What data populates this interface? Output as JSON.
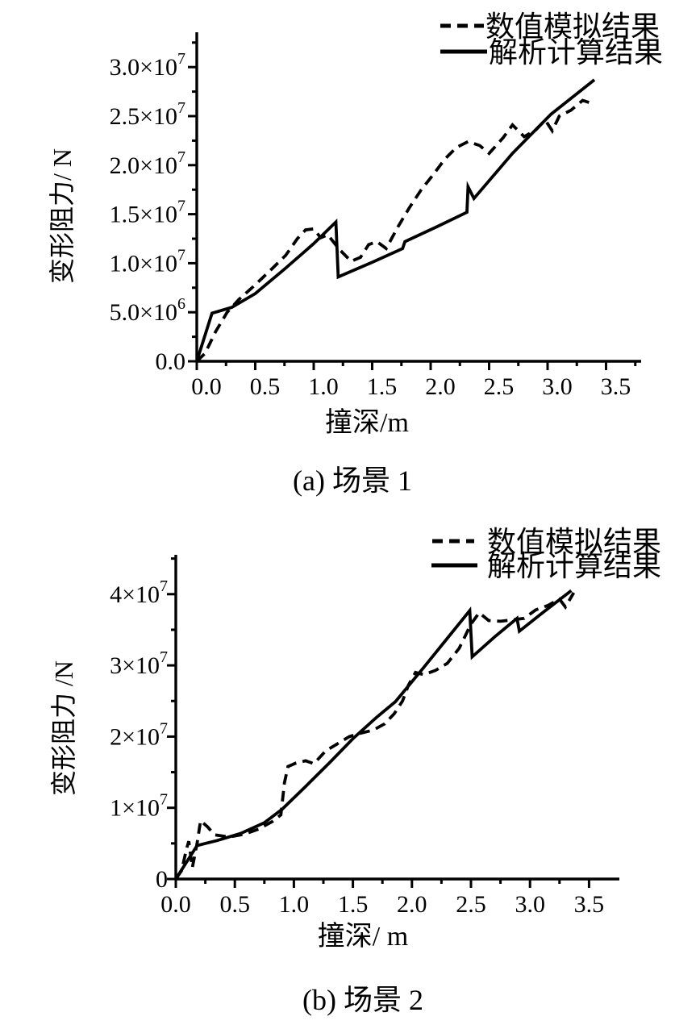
{
  "page": {
    "background": "#ffffff",
    "ink": "#000000"
  },
  "chart_data": [
    {
      "id": "a",
      "type": "line",
      "caption": "(a) 场景 1",
      "xlabel": "撞深/m",
      "ylabel": "变形阻力/ N",
      "xlim": [
        0,
        3.75
      ],
      "ylim": [
        0,
        32500000
      ],
      "grid": false,
      "legend_position": "top-right",
      "x_ticks": [
        {
          "v": 0.0,
          "label": "0.0"
        },
        {
          "v": 0.5,
          "label": "0.5"
        },
        {
          "v": 1.0,
          "label": "1.0"
        },
        {
          "v": 1.5,
          "label": "1.5"
        },
        {
          "v": 2.0,
          "label": "2.0"
        },
        {
          "v": 2.5,
          "label": "2.5"
        },
        {
          "v": 3.0,
          "label": "3.0"
        },
        {
          "v": 3.5,
          "label": "3.5"
        }
      ],
      "y_ticks": [
        {
          "v": 0,
          "label": "0.0",
          "exp": ""
        },
        {
          "v": 5000000,
          "label": "5.0×10",
          "exp": "6"
        },
        {
          "v": 10000000,
          "label": "1.0×10",
          "exp": "7"
        },
        {
          "v": 15000000,
          "label": "1.5×10",
          "exp": "7"
        },
        {
          "v": 20000000,
          "label": "2.0×10",
          "exp": "7"
        },
        {
          "v": 25000000,
          "label": "2.5×10",
          "exp": "7"
        },
        {
          "v": 30000000,
          "label": "3.0×10",
          "exp": "7"
        }
      ],
      "legend": [
        {
          "label": "数值模拟结果",
          "style": "dashed"
        },
        {
          "label": "解析计算结果",
          "style": "solid"
        }
      ],
      "series": [
        {
          "name": "数值模拟结果",
          "style": "dashed",
          "points": [
            [
              0,
              0
            ],
            [
              0.07,
              800000
            ],
            [
              0.16,
              3000000
            ],
            [
              0.26,
              5000000
            ],
            [
              0.36,
              6300000
            ],
            [
              0.5,
              7800000
            ],
            [
              0.64,
              9400000
            ],
            [
              0.76,
              10800000
            ],
            [
              0.86,
              12500000
            ],
            [
              0.93,
              13400000
            ],
            [
              1.0,
              13500000
            ],
            [
              1.06,
              12600000
            ],
            [
              1.12,
              12900000
            ],
            [
              1.22,
              11400000
            ],
            [
              1.32,
              10200000
            ],
            [
              1.4,
              10600000
            ],
            [
              1.47,
              11900000
            ],
            [
              1.54,
              12200000
            ],
            [
              1.62,
              11500000
            ],
            [
              1.72,
              13700000
            ],
            [
              1.82,
              15700000
            ],
            [
              1.92,
              17500000
            ],
            [
              2.02,
              19000000
            ],
            [
              2.12,
              20600000
            ],
            [
              2.22,
              21800000
            ],
            [
              2.32,
              22400000
            ],
            [
              2.42,
              22000000
            ],
            [
              2.5,
              21200000
            ],
            [
              2.62,
              22800000
            ],
            [
              2.7,
              24100000
            ],
            [
              2.8,
              22900000
            ],
            [
              2.9,
              23600000
            ],
            [
              2.98,
              24600000
            ],
            [
              3.04,
              23500000
            ],
            [
              3.1,
              25000000
            ],
            [
              3.2,
              25600000
            ],
            [
              3.3,
              26600000
            ],
            [
              3.38,
              26300000
            ]
          ]
        },
        {
          "name": "解析计算结果",
          "style": "solid",
          "points": [
            [
              0,
              0
            ],
            [
              0.13,
              4900000
            ],
            [
              0.3,
              5500000
            ],
            [
              0.5,
              6900000
            ],
            [
              0.75,
              9400000
            ],
            [
              1.0,
              12000000
            ],
            [
              1.19,
              14200000
            ],
            [
              1.21,
              8600000
            ],
            [
              1.5,
              10100000
            ],
            [
              1.76,
              11500000
            ],
            [
              1.78,
              12200000
            ],
            [
              2.05,
              13700000
            ],
            [
              2.31,
              15200000
            ],
            [
              2.32,
              17800000
            ],
            [
              2.37,
              16600000
            ],
            [
              2.7,
              21200000
            ],
            [
              3.03,
              25200000
            ],
            [
              3.4,
              28700000
            ]
          ]
        }
      ]
    },
    {
      "id": "b",
      "type": "line",
      "caption": "(b) 场景 2",
      "xlabel": "撞深/ m",
      "ylabel": "变形阻力 /N",
      "xlim": [
        0,
        3.75
      ],
      "ylim": [
        0,
        45000000
      ],
      "grid": false,
      "legend_position": "top-right",
      "x_ticks": [
        {
          "v": 0.0,
          "label": "0.0"
        },
        {
          "v": 0.5,
          "label": "0.5"
        },
        {
          "v": 1.0,
          "label": "1.0"
        },
        {
          "v": 1.5,
          "label": "1.5"
        },
        {
          "v": 2.0,
          "label": "2.0"
        },
        {
          "v": 2.5,
          "label": "2.5"
        },
        {
          "v": 3.0,
          "label": "3.0"
        },
        {
          "v": 3.5,
          "label": "3.5"
        }
      ],
      "y_ticks": [
        {
          "v": 0,
          "label": "0",
          "exp": ""
        },
        {
          "v": 10000000,
          "label": "1×10",
          "exp": "7"
        },
        {
          "v": 20000000,
          "label": "2×10",
          "exp": "7"
        },
        {
          "v": 30000000,
          "label": "3×10",
          "exp": "7"
        },
        {
          "v": 40000000,
          "label": "4×10",
          "exp": "7"
        }
      ],
      "legend": [
        {
          "label": "数值模拟结果",
          "style": "dashed"
        },
        {
          "label": "解析计算结果",
          "style": "solid"
        }
      ],
      "series": [
        {
          "name": "数值模拟结果",
          "style": "dashed",
          "points": [
            [
              0,
              0
            ],
            [
              0.05,
              1200000
            ],
            [
              0.09,
              4200000
            ],
            [
              0.11,
              5300000
            ],
            [
              0.14,
              1600000
            ],
            [
              0.18,
              5000000
            ],
            [
              0.21,
              8200000
            ],
            [
              0.27,
              7300000
            ],
            [
              0.33,
              6200000
            ],
            [
              0.45,
              5900000
            ],
            [
              0.58,
              6300000
            ],
            [
              0.7,
              7000000
            ],
            [
              0.82,
              8100000
            ],
            [
              0.89,
              9000000
            ],
            [
              0.92,
              13500000
            ],
            [
              0.95,
              15800000
            ],
            [
              1.02,
              16300000
            ],
            [
              1.1,
              16600000
            ],
            [
              1.17,
              16200000
            ],
            [
              1.27,
              18000000
            ],
            [
              1.37,
              19000000
            ],
            [
              1.47,
              20000000
            ],
            [
              1.57,
              20500000
            ],
            [
              1.67,
              20900000
            ],
            [
              1.77,
              21800000
            ],
            [
              1.85,
              23200000
            ],
            [
              1.92,
              25000000
            ],
            [
              1.97,
              27200000
            ],
            [
              2.03,
              29000000
            ],
            [
              2.1,
              28700000
            ],
            [
              2.2,
              29300000
            ],
            [
              2.3,
              30300000
            ],
            [
              2.4,
              32400000
            ],
            [
              2.5,
              35800000
            ],
            [
              2.57,
              37400000
            ],
            [
              2.65,
              36300000
            ],
            [
              2.75,
              36200000
            ],
            [
              2.85,
              36400000
            ],
            [
              2.95,
              36600000
            ],
            [
              3.05,
              37800000
            ],
            [
              3.15,
              38400000
            ],
            [
              3.25,
              39300000
            ],
            [
              3.3,
              38200000
            ],
            [
              3.37,
              40200000
            ]
          ]
        },
        {
          "name": "解析计算结果",
          "style": "solid",
          "points": [
            [
              0,
              0
            ],
            [
              0.18,
              4700000
            ],
            [
              0.35,
              5400000
            ],
            [
              0.55,
              6400000
            ],
            [
              0.75,
              7900000
            ],
            [
              0.9,
              9800000
            ],
            [
              1.1,
              13000000
            ],
            [
              1.3,
              16300000
            ],
            [
              1.5,
              19700000
            ],
            [
              1.7,
              22700000
            ],
            [
              1.86,
              24900000
            ],
            [
              2.1,
              29700000
            ],
            [
              2.3,
              33800000
            ],
            [
              2.49,
              37700000
            ],
            [
              2.51,
              31200000
            ],
            [
              2.7,
              34000000
            ],
            [
              2.89,
              36600000
            ],
            [
              2.91,
              34800000
            ],
            [
              3.1,
              37300000
            ],
            [
              3.35,
              40500000
            ]
          ]
        }
      ]
    }
  ]
}
